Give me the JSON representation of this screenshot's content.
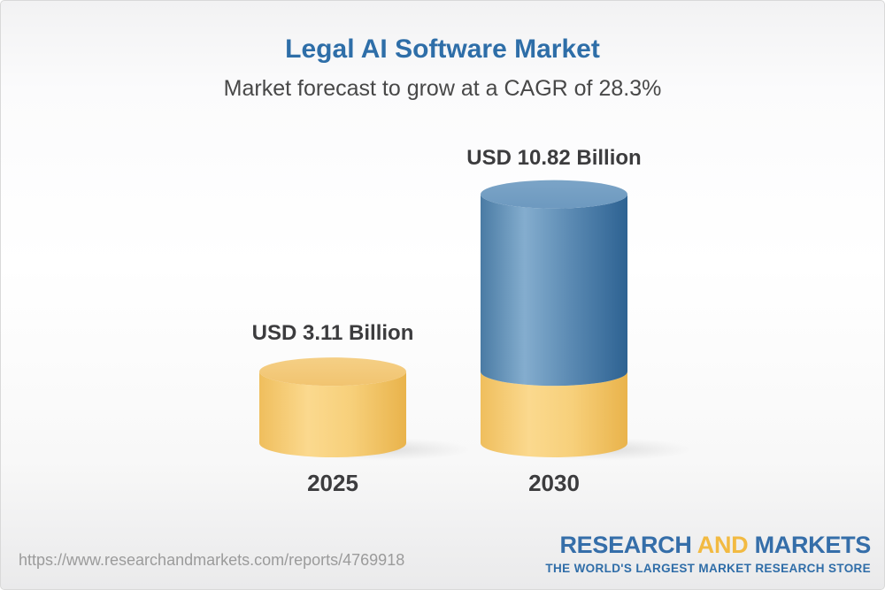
{
  "header": {
    "title": "Legal AI Software Market",
    "subtitle": "Market forecast to grow at a CAGR of 28.3%"
  },
  "chart_data": {
    "type": "bar",
    "style": "3d-cylinder",
    "title": "Legal AI Software Market",
    "subtitle": "Market forecast to grow at a CAGR of 28.3%",
    "cagr_percent": 28.3,
    "unit": "USD Billion",
    "categories": [
      "2025",
      "2030"
    ],
    "values": [
      3.11,
      10.82
    ],
    "axes": "none",
    "grid": false,
    "legend": "none",
    "bars": [
      {
        "category": "2025",
        "value": 3.11,
        "label": "USD 3.11 Billion",
        "segments": [
          {
            "value": 3.11,
            "color_key": "yellow"
          }
        ]
      },
      {
        "category": "2030",
        "value": 10.82,
        "label": "USD 10.82 Billion",
        "segments": [
          {
            "value": 3.11,
            "color_key": "yellow"
          },
          {
            "value": 7.71,
            "color_key": "blue"
          }
        ]
      }
    ],
    "colors": {
      "yellow": "#f2c46d",
      "blue": "#4c80ab",
      "title_blue": "#2e6ea8",
      "label_dark": "#3c3c3e"
    }
  },
  "footer": {
    "url": "https://www.researchandmarkets.com/reports/4769918",
    "logo": {
      "part1": "RESEARCH",
      "part2": "AND",
      "part3": "MARKETS",
      "tagline": "THE WORLD'S LARGEST MARKET RESEARCH STORE",
      "blue": "#356ea9",
      "gold": "#f2ba42"
    }
  }
}
